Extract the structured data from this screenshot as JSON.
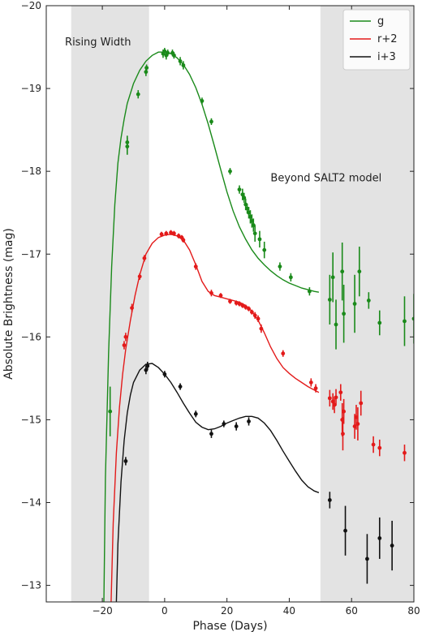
{
  "chart_data": {
    "type": "scatter",
    "xlabel": "Phase (Days)",
    "ylabel": "Absolute Brightness (mag)",
    "xlim": [
      -38,
      80
    ],
    "ylim": [
      -12.8,
      -20
    ],
    "y_inverted": true,
    "xticks": [
      -20,
      0,
      20,
      40,
      60,
      80
    ],
    "yticks": [
      -13,
      -14,
      -15,
      -16,
      -17,
      -18,
      -19,
      -20
    ],
    "shaded_regions": [
      {
        "x0": -30,
        "x1": -5,
        "color": "#e3e3e3"
      },
      {
        "x0": 50,
        "x1": 80,
        "color": "#e3e3e3"
      }
    ],
    "annotations": [
      {
        "text": "Rising Width",
        "x": -32,
        "y": -19.52
      },
      {
        "text": "Beyond SALT2 model",
        "x": 34,
        "y": -17.88
      }
    ],
    "legend_position": "top-right",
    "series": [
      {
        "name": "g",
        "color": "#1a8a1a",
        "curve": [
          [
            -19.5,
            -12.8
          ],
          [
            -19,
            -14.3
          ],
          [
            -18,
            -15.8
          ],
          [
            -17,
            -16.85
          ],
          [
            -16,
            -17.6
          ],
          [
            -15,
            -18.1
          ],
          [
            -14,
            -18.4
          ],
          [
            -13,
            -18.63
          ],
          [
            -12,
            -18.82
          ],
          [
            -10,
            -19.06
          ],
          [
            -8,
            -19.22
          ],
          [
            -6,
            -19.33
          ],
          [
            -4,
            -19.4
          ],
          [
            -2,
            -19.44
          ],
          [
            0,
            -19.44
          ],
          [
            2,
            -19.42
          ],
          [
            4,
            -19.37
          ],
          [
            6,
            -19.29
          ],
          [
            8,
            -19.17
          ],
          [
            10,
            -19.01
          ],
          [
            12,
            -18.81
          ],
          [
            14,
            -18.57
          ],
          [
            16,
            -18.3
          ],
          [
            18,
            -18.02
          ],
          [
            20,
            -17.75
          ],
          [
            22,
            -17.52
          ],
          [
            24,
            -17.33
          ],
          [
            26,
            -17.18
          ],
          [
            28,
            -17.05
          ],
          [
            30,
            -16.95
          ],
          [
            32,
            -16.87
          ],
          [
            34,
            -16.8
          ],
          [
            36,
            -16.74
          ],
          [
            38,
            -16.69
          ],
          [
            40,
            -16.65
          ],
          [
            42,
            -16.62
          ],
          [
            44,
            -16.59
          ],
          [
            46,
            -16.57
          ],
          [
            48,
            -16.55
          ],
          [
            49.5,
            -16.54
          ]
        ],
        "points": [
          {
            "x": -17.5,
            "y": -15.1,
            "err": 0.3
          },
          {
            "x": -12,
            "y": -18.3,
            "err": 0.1
          },
          {
            "x": -12,
            "y": -18.35,
            "err": 0.08
          },
          {
            "x": -8.5,
            "y": -18.93,
            "err": 0.05
          },
          {
            "x": -6,
            "y": -19.2,
            "err": 0.05
          },
          {
            "x": -5.8,
            "y": -19.25,
            "err": 0.04
          },
          {
            "x": -0.5,
            "y": -19.42,
            "err": 0.05
          },
          {
            "x": 0,
            "y": -19.45,
            "err": 0.04
          },
          {
            "x": 0.5,
            "y": -19.4,
            "err": 0.05
          },
          {
            "x": 1,
            "y": -19.43,
            "err": 0.04
          },
          {
            "x": 2.5,
            "y": -19.43,
            "err": 0.04
          },
          {
            "x": 3,
            "y": -19.4,
            "err": 0.04
          },
          {
            "x": 5,
            "y": -19.33,
            "err": 0.05
          },
          {
            "x": 6,
            "y": -19.28,
            "err": 0.05
          },
          {
            "x": 12,
            "y": -18.85,
            "err": 0.04
          },
          {
            "x": 15,
            "y": -18.6,
            "err": 0.04
          },
          {
            "x": 21,
            "y": -18.0,
            "err": 0.04
          },
          {
            "x": 24,
            "y": -17.78,
            "err": 0.05
          },
          {
            "x": 25,
            "y": -17.72,
            "err": 0.07
          },
          {
            "x": 25.5,
            "y": -17.68,
            "err": 0.06
          },
          {
            "x": 26,
            "y": -17.6,
            "err": 0.07
          },
          {
            "x": 26.5,
            "y": -17.55,
            "err": 0.06
          },
          {
            "x": 27,
            "y": -17.5,
            "err": 0.07
          },
          {
            "x": 27.5,
            "y": -17.45,
            "err": 0.08
          },
          {
            "x": 28,
            "y": -17.4,
            "err": 0.08
          },
          {
            "x": 28.5,
            "y": -17.35,
            "err": 0.08
          },
          {
            "x": 29,
            "y": -17.25,
            "err": 0.1
          },
          {
            "x": 30.5,
            "y": -17.18,
            "err": 0.1
          },
          {
            "x": 32,
            "y": -17.05,
            "err": 0.1
          },
          {
            "x": 37,
            "y": -16.85,
            "err": 0.05
          },
          {
            "x": 40.5,
            "y": -16.72,
            "err": 0.05
          },
          {
            "x": 46.5,
            "y": -16.55,
            "err": 0.05
          },
          {
            "x": 53,
            "y": -16.45,
            "err": 0.3
          },
          {
            "x": 54,
            "y": -16.72,
            "err": 0.3
          },
          {
            "x": 55,
            "y": -16.15,
            "err": 0.3
          },
          {
            "x": 57,
            "y": -16.79,
            "err": 0.35
          },
          {
            "x": 57.5,
            "y": -16.28,
            "err": 0.35
          },
          {
            "x": 61,
            "y": -16.4,
            "err": 0.35
          },
          {
            "x": 62.5,
            "y": -16.79,
            "err": 0.3
          },
          {
            "x": 65.5,
            "y": -16.44,
            "err": 0.1
          },
          {
            "x": 69,
            "y": -16.17,
            "err": 0.15
          },
          {
            "x": 77,
            "y": -16.19,
            "err": 0.3
          },
          {
            "x": 80,
            "y": -16.22,
            "err": 0.3
          }
        ]
      },
      {
        "name": "r+2",
        "color": "#e31a1a",
        "curve": [
          [
            -17.2,
            -12.8
          ],
          [
            -16.5,
            -13.75
          ],
          [
            -15.5,
            -14.6
          ],
          [
            -14.5,
            -15.15
          ],
          [
            -13.5,
            -15.55
          ],
          [
            -12.5,
            -15.85
          ],
          [
            -11,
            -16.2
          ],
          [
            -9.5,
            -16.5
          ],
          [
            -8,
            -16.75
          ],
          [
            -6,
            -17.0
          ],
          [
            -4,
            -17.13
          ],
          [
            -2,
            -17.2
          ],
          [
            0,
            -17.23
          ],
          [
            2,
            -17.24
          ],
          [
            4,
            -17.22
          ],
          [
            6,
            -17.17
          ],
          [
            8,
            -17.05
          ],
          [
            10,
            -16.87
          ],
          [
            12,
            -16.67
          ],
          [
            14,
            -16.55
          ],
          [
            16,
            -16.5
          ],
          [
            18,
            -16.48
          ],
          [
            20,
            -16.46
          ],
          [
            22,
            -16.44
          ],
          [
            24,
            -16.42
          ],
          [
            26,
            -16.38
          ],
          [
            28,
            -16.31
          ],
          [
            30,
            -16.2
          ],
          [
            32,
            -16.05
          ],
          [
            34,
            -15.88
          ],
          [
            36,
            -15.74
          ],
          [
            38,
            -15.63
          ],
          [
            40,
            -15.56
          ],
          [
            42,
            -15.5
          ],
          [
            44,
            -15.45
          ],
          [
            46,
            -15.4
          ],
          [
            48,
            -15.36
          ],
          [
            49.5,
            -15.33
          ]
        ],
        "points": [
          {
            "x": -13,
            "y": -15.9,
            "err": 0.05
          },
          {
            "x": -12.5,
            "y": -16.0,
            "err": 0.05
          },
          {
            "x": -10.5,
            "y": -16.35,
            "err": 0.05
          },
          {
            "x": -8,
            "y": -16.73,
            "err": 0.04
          },
          {
            "x": -6.5,
            "y": -16.95,
            "err": 0.04
          },
          {
            "x": -1,
            "y": -17.24,
            "err": 0.03
          },
          {
            "x": 0.5,
            "y": -17.25,
            "err": 0.03
          },
          {
            "x": 2,
            "y": -17.26,
            "err": 0.03
          },
          {
            "x": 3,
            "y": -17.25,
            "err": 0.03
          },
          {
            "x": 4.5,
            "y": -17.22,
            "err": 0.03
          },
          {
            "x": 5.5,
            "y": -17.2,
            "err": 0.03
          },
          {
            "x": 6,
            "y": -17.17,
            "err": 0.03
          },
          {
            "x": 10,
            "y": -16.85,
            "err": 0.04
          },
          {
            "x": 15,
            "y": -16.53,
            "err": 0.04
          },
          {
            "x": 18,
            "y": -16.5,
            "err": 0.03
          },
          {
            "x": 21,
            "y": -16.43,
            "err": 0.03
          },
          {
            "x": 23,
            "y": -16.41,
            "err": 0.03
          },
          {
            "x": 24,
            "y": -16.4,
            "err": 0.03
          },
          {
            "x": 25,
            "y": -16.38,
            "err": 0.03
          },
          {
            "x": 26,
            "y": -16.36,
            "err": 0.03
          },
          {
            "x": 27,
            "y": -16.34,
            "err": 0.03
          },
          {
            "x": 28,
            "y": -16.3,
            "err": 0.03
          },
          {
            "x": 29,
            "y": -16.26,
            "err": 0.04
          },
          {
            "x": 30,
            "y": -16.22,
            "err": 0.04
          },
          {
            "x": 31,
            "y": -16.1,
            "err": 0.05
          },
          {
            "x": 38,
            "y": -15.8,
            "err": 0.04
          },
          {
            "x": 47,
            "y": -15.45,
            "err": 0.05
          },
          {
            "x": 48.5,
            "y": -15.38,
            "err": 0.05
          },
          {
            "x": 53,
            "y": -15.26,
            "err": 0.1
          },
          {
            "x": 54,
            "y": -15.22,
            "err": 0.1
          },
          {
            "x": 54.5,
            "y": -15.18,
            "err": 0.1
          },
          {
            "x": 55,
            "y": -15.27,
            "err": 0.1
          },
          {
            "x": 56.5,
            "y": -15.33,
            "err": 0.1
          },
          {
            "x": 57,
            "y": -15.0,
            "err": 0.2
          },
          {
            "x": 57.2,
            "y": -14.83,
            "err": 0.2
          },
          {
            "x": 57.5,
            "y": -15.1,
            "err": 0.15
          },
          {
            "x": 61,
            "y": -14.92,
            "err": 0.15
          },
          {
            "x": 61.5,
            "y": -15.03,
            "err": 0.15
          },
          {
            "x": 62,
            "y": -14.95,
            "err": 0.2
          },
          {
            "x": 63,
            "y": -15.2,
            "err": 0.15
          },
          {
            "x": 67,
            "y": -14.7,
            "err": 0.1
          },
          {
            "x": 69,
            "y": -14.66,
            "err": 0.1
          },
          {
            "x": 77,
            "y": -14.6,
            "err": 0.1
          }
        ]
      },
      {
        "name": "i+3",
        "color": "#111111",
        "curve": [
          [
            -15.5,
            -12.8
          ],
          [
            -15,
            -13.5
          ],
          [
            -14,
            -14.25
          ],
          [
            -13,
            -14.75
          ],
          [
            -12,
            -15.08
          ],
          [
            -11,
            -15.3
          ],
          [
            -10,
            -15.45
          ],
          [
            -8,
            -15.6
          ],
          [
            -6,
            -15.67
          ],
          [
            -4,
            -15.68
          ],
          [
            -2,
            -15.63
          ],
          [
            0,
            -15.55
          ],
          [
            2,
            -15.45
          ],
          [
            4,
            -15.33
          ],
          [
            6,
            -15.2
          ],
          [
            8,
            -15.08
          ],
          [
            10,
            -14.97
          ],
          [
            12,
            -14.91
          ],
          [
            14,
            -14.88
          ],
          [
            16,
            -14.89
          ],
          [
            18,
            -14.92
          ],
          [
            20,
            -14.96
          ],
          [
            22,
            -14.99
          ],
          [
            24,
            -15.02
          ],
          [
            26,
            -15.04
          ],
          [
            28,
            -15.04
          ],
          [
            30,
            -15.02
          ],
          [
            32,
            -14.96
          ],
          [
            34,
            -14.87
          ],
          [
            36,
            -14.75
          ],
          [
            38,
            -14.62
          ],
          [
            40,
            -14.5
          ],
          [
            42,
            -14.38
          ],
          [
            44,
            -14.27
          ],
          [
            46,
            -14.19
          ],
          [
            48,
            -14.14
          ],
          [
            49.5,
            -14.12
          ]
        ],
        "points": [
          {
            "x": -12.5,
            "y": -14.5,
            "err": 0.05
          },
          {
            "x": -6,
            "y": -15.6,
            "err": 0.05
          },
          {
            "x": -5.5,
            "y": -15.65,
            "err": 0.05
          },
          {
            "x": 0,
            "y": -15.55,
            "err": 0.04
          },
          {
            "x": 5,
            "y": -15.4,
            "err": 0.04
          },
          {
            "x": 10,
            "y": -15.07,
            "err": 0.04
          },
          {
            "x": 15,
            "y": -14.83,
            "err": 0.05
          },
          {
            "x": 19,
            "y": -14.95,
            "err": 0.04
          },
          {
            "x": 23,
            "y": -14.92,
            "err": 0.05
          },
          {
            "x": 27,
            "y": -14.98,
            "err": 0.05
          },
          {
            "x": 53,
            "y": -14.03,
            "err": 0.1
          },
          {
            "x": 58,
            "y": -13.66,
            "err": 0.3
          },
          {
            "x": 65,
            "y": -13.32,
            "err": 0.3
          },
          {
            "x": 69,
            "y": -13.57,
            "err": 0.25
          },
          {
            "x": 73,
            "y": -13.48,
            "err": 0.3
          }
        ]
      }
    ]
  }
}
